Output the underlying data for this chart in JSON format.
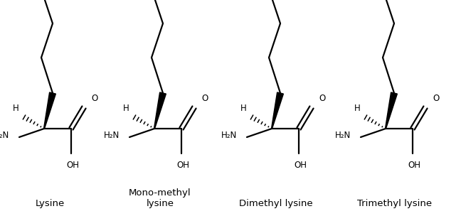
{
  "background": "#ffffff",
  "figsize": [
    6.48,
    3.11
  ],
  "dpi": 100,
  "labels": [
    "Lysine",
    "Mono-methyl\nlysine",
    "Dimethyl lysine",
    "Trimethyl lysine"
  ],
  "black": "#000000",
  "red": "#cc0000",
  "lw": 1.6
}
